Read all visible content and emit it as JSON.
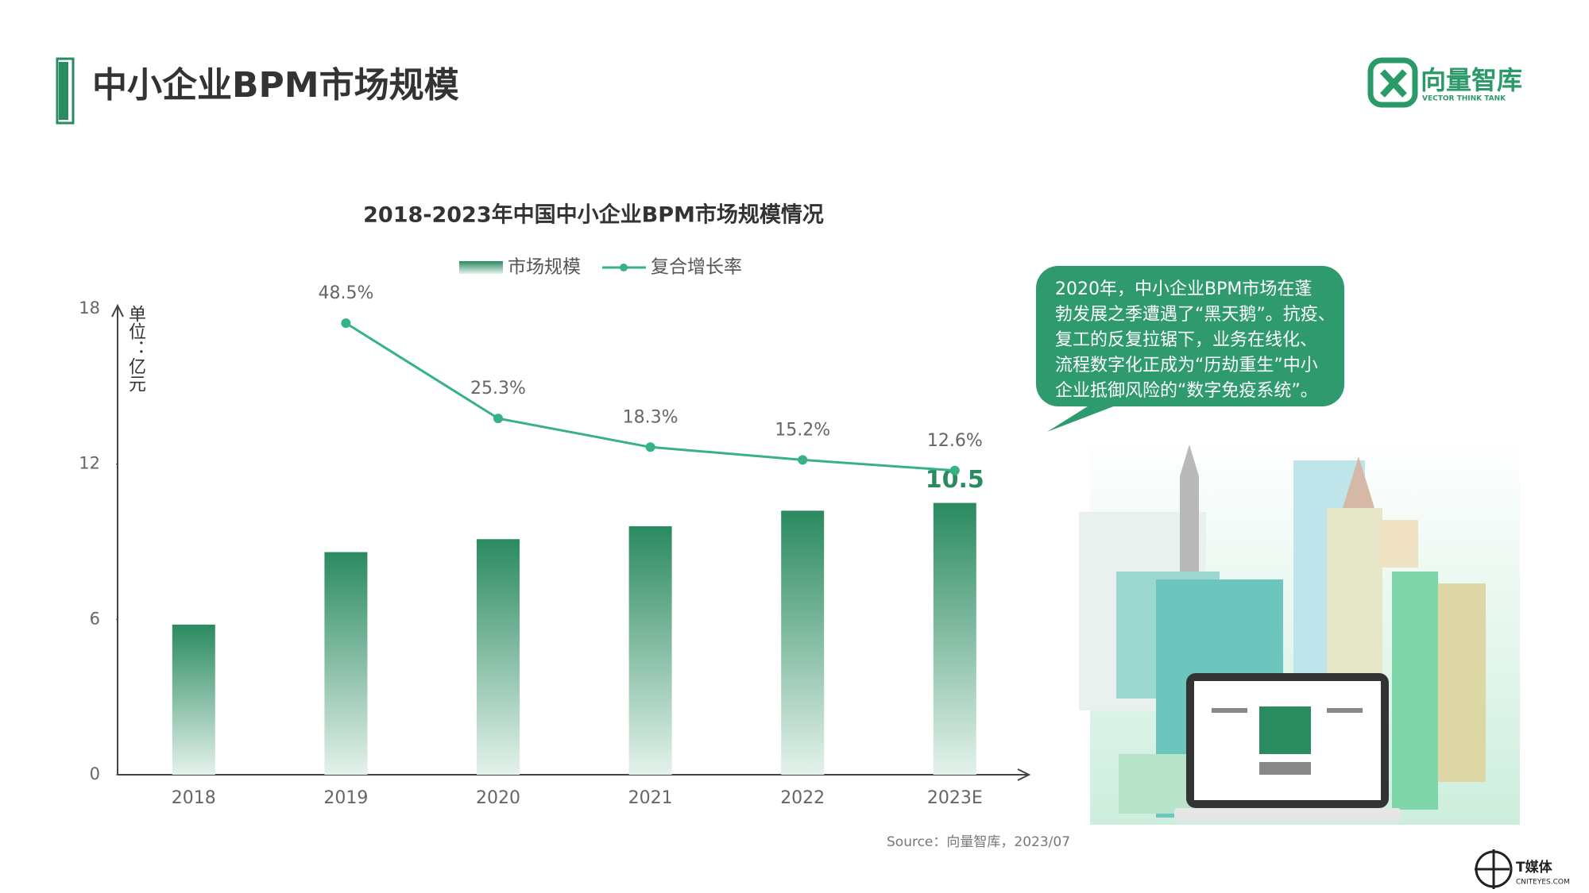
{
  "header": {
    "title": "中小企业BPM市场规模",
    "logo_name": "向量智库",
    "logo_subtitle": "VECTOR THINK TANK"
  },
  "chart_data": {
    "type": "bar",
    "title": "2018-2023年中国中小企业BPM市场规模情况",
    "categories": [
      "2018",
      "2019",
      "2020",
      "2021",
      "2022",
      "2023E"
    ],
    "y_axis_label": "单位：亿元",
    "ylim": [
      0,
      18
    ],
    "yticks": [
      0,
      6,
      12,
      18
    ],
    "y2lim": [
      -61.5,
      52
    ],
    "grid": false,
    "legend": "top",
    "series": [
      {
        "name": "市场规模",
        "type": "bar",
        "color": "#2a8a60",
        "values": [
          5.8,
          8.6,
          9.1,
          9.6,
          10.2,
          10.5
        ],
        "value_labels": [
          null,
          null,
          null,
          null,
          null,
          "10.5"
        ]
      },
      {
        "name": "复合增长率",
        "type": "line",
        "axis": "y2",
        "color": "#36b286",
        "values": [
          null,
          48.5,
          25.3,
          18.3,
          15.2,
          12.6
        ],
        "value_labels": [
          null,
          "48.5%",
          "25.3%",
          "18.3%",
          "15.2%",
          "12.6%"
        ]
      }
    ]
  },
  "callout": {
    "lines": [
      "2020年，中小企业BPM市场在蓬",
      "勃发展之季遭遇了“黑天鹅”。抗疫、",
      "复工的反复拉锯下，业务在线化、",
      "流程数字化正成为“历劫重生”中小",
      "企业抵御风险的“数字免疫系统”。"
    ]
  },
  "footer": {
    "source": "Source：向量智库，2023/07",
    "brand": "T媒体",
    "brand_url": "CNITEYES.COM"
  }
}
